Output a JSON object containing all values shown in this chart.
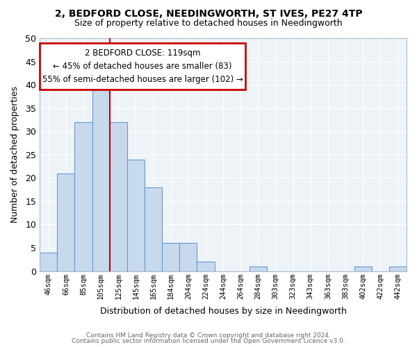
{
  "title1": "2, BEDFORD CLOSE, NEEDINGWORTH, ST IVES, PE27 4TP",
  "title2": "Size of property relative to detached houses in Needingworth",
  "xlabel": "Distribution of detached houses by size in Needingworth",
  "ylabel": "Number of detached properties",
  "bar_labels": [
    "46sqm",
    "66sqm",
    "85sqm",
    "105sqm",
    "125sqm",
    "145sqm",
    "165sqm",
    "184sqm",
    "204sqm",
    "224sqm",
    "244sqm",
    "264sqm",
    "284sqm",
    "303sqm",
    "323sqm",
    "343sqm",
    "363sqm",
    "383sqm",
    "402sqm",
    "422sqm",
    "442sqm"
  ],
  "bar_values": [
    4,
    21,
    32,
    39,
    32,
    24,
    18,
    6,
    6,
    2,
    0,
    0,
    1,
    0,
    0,
    0,
    0,
    0,
    1,
    0,
    1
  ],
  "bar_facecolor": "#c8d9ee",
  "bar_edgecolor": "#6699cc",
  "vline_x_index": 4,
  "vline_color": "#cc0000",
  "ylim": [
    0,
    50
  ],
  "yticks": [
    0,
    5,
    10,
    15,
    20,
    25,
    30,
    35,
    40,
    45,
    50
  ],
  "annotation_text_line1": "2 BEDFORD CLOSE: 119sqm",
  "annotation_text_line2": "← 45% of detached houses are smaller (83)",
  "annotation_text_line3": "55% of semi-detached houses are larger (102) →",
  "footer1": "Contains HM Land Registry data © Crown copyright and database right 2024.",
  "footer2": "Contains public sector information licensed under the Open Government Licence v3.0.",
  "background_color": "#ffffff",
  "plot_bg_color": "#eef3f8",
  "grid_color": "#ffffff",
  "title1_fontsize": 10,
  "title2_fontsize": 9
}
